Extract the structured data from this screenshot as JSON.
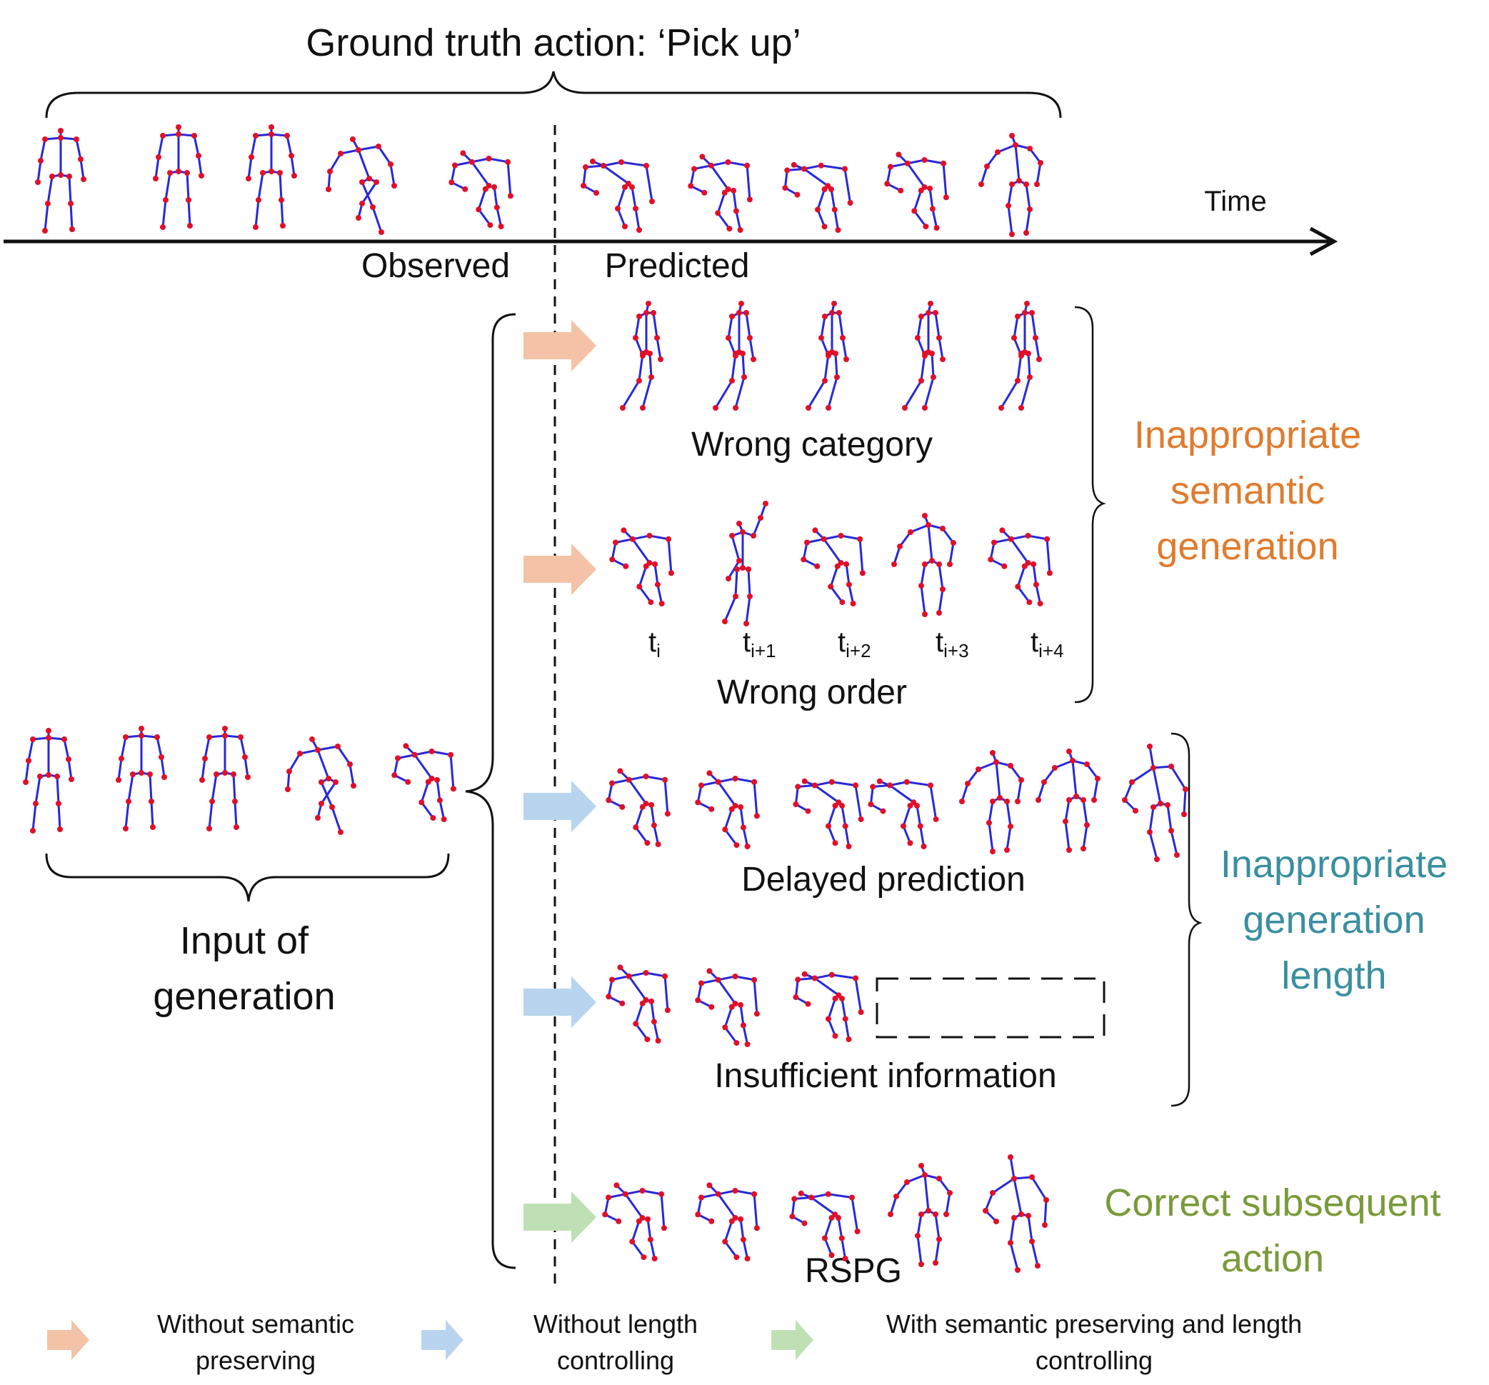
{
  "title": "Ground truth action: ‘Pick up’",
  "timeline": {
    "time_label": "Time",
    "observed_label": "Observed",
    "predicted_label": "Predicted"
  },
  "input_label": {
    "line1": "Input of",
    "line2": "generation"
  },
  "rows": {
    "wrong_category": "Wrong category",
    "wrong_order": "Wrong order",
    "delayed": "Delayed prediction",
    "insufficient": "Insufficient information",
    "correct": "RSPG"
  },
  "time_ticks": [
    {
      "base": "t",
      "sub": "i"
    },
    {
      "base": "t",
      "sub": "i+1"
    },
    {
      "base": "t",
      "sub": "i+2"
    },
    {
      "base": "t",
      "sub": "i+3"
    },
    {
      "base": "t",
      "sub": "i+4"
    }
  ],
  "groups": {
    "semantic": {
      "line1": "Inappropriate",
      "line2": "semantic",
      "line3": "generation",
      "color": "#E07B2E"
    },
    "length": {
      "line1": "Inappropriate",
      "line2": "generation",
      "line3": "length",
      "color": "#3A8FA0"
    },
    "correct": {
      "line1": "Correct subsequent",
      "line2": "action",
      "color": "#7A9A3A"
    }
  },
  "legend": [
    {
      "line1": "Without semantic",
      "line2": "preserving",
      "color": "#F4C2A6"
    },
    {
      "line1": "Without length",
      "line2": "controlling",
      "color": "#B8D4EE"
    },
    {
      "line1": "With semantic preserving and length",
      "line2": "controlling",
      "color": "#BFE0B5"
    }
  ],
  "colors": {
    "bone": "#2828D8",
    "joint": "#E0102A"
  }
}
